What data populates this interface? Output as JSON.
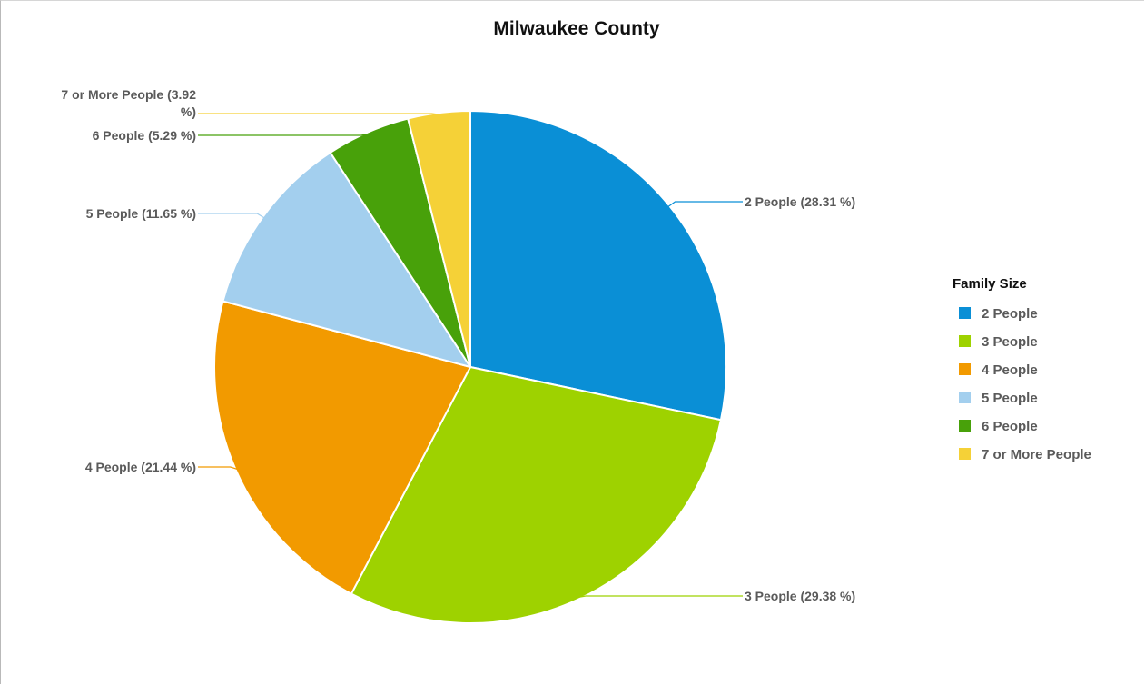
{
  "chart_data": {
    "type": "pie",
    "title": "Milwaukee County",
    "legend_title": "Family Size",
    "legend_position": "right",
    "slices": [
      {
        "name": "2 People",
        "value": 28.31,
        "label": "2 People (28.31 %)",
        "color": "#0a8fd6"
      },
      {
        "name": "3 People",
        "value": 29.38,
        "label": "3 People (29.38 %)",
        "color": "#9ed200"
      },
      {
        "name": "4 People",
        "value": 21.44,
        "label": "4 People (21.44 %)",
        "color": "#f29a00"
      },
      {
        "name": "5 People",
        "value": 11.65,
        "label": "5 People (11.65 %)",
        "color": "#a3cfee"
      },
      {
        "name": "6 People",
        "value": 5.29,
        "label": "6 People (5.29 %)",
        "color": "#48a10a"
      },
      {
        "name": "7 or More People",
        "value": 3.92,
        "label_lines": [
          "7 or More People (3.92",
          "%)"
        ],
        "color": "#f5d137"
      }
    ]
  }
}
